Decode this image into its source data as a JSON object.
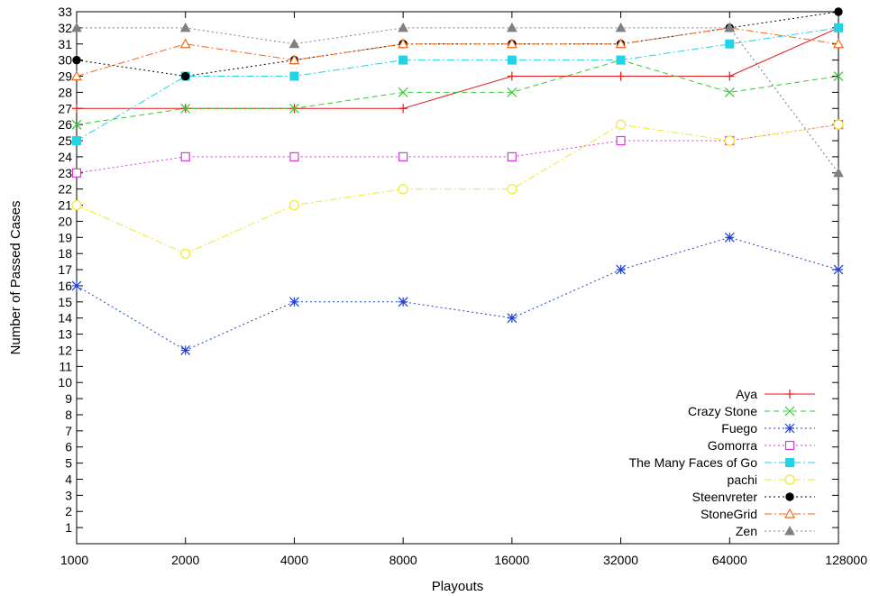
{
  "chart_data": {
    "type": "line",
    "xlabel": "Playouts",
    "ylabel": "Number of Passed Cases",
    "categories": [
      "1000",
      "2000",
      "4000",
      "8000",
      "16000",
      "32000",
      "64000",
      "128000"
    ],
    "y_ticks": [
      "1",
      "2",
      "3",
      "4",
      "5",
      "6",
      "7",
      "8",
      "9",
      "10",
      "11",
      "12",
      "13",
      "14",
      "15",
      "16",
      "17",
      "18",
      "19",
      "20",
      "21",
      "22",
      "23",
      "24",
      "25",
      "26",
      "27",
      "28",
      "29",
      "30",
      "31",
      "32",
      "33"
    ],
    "ylim": [
      0,
      33
    ],
    "x_scale": "log2 (evenly spaced)",
    "grid": false,
    "legend_position": "bottom-right",
    "series": [
      {
        "name": "Aya",
        "values": [
          27,
          27,
          27,
          27,
          29,
          29,
          29,
          32
        ],
        "color": "#e31a1c",
        "marker": "plus",
        "dash": "solid"
      },
      {
        "name": "Crazy Stone",
        "values": [
          26,
          27,
          27,
          28,
          28,
          30,
          28,
          29
        ],
        "color": "#33cc33",
        "marker": "cross",
        "dash": "dashed"
      },
      {
        "name": "Fuego",
        "values": [
          16,
          12,
          15,
          15,
          14,
          17,
          19,
          17
        ],
        "color": "#1f3fd0",
        "marker": "star",
        "dash": "dotted"
      },
      {
        "name": "Gomorra",
        "values": [
          23,
          24,
          24,
          24,
          24,
          25,
          25,
          26
        ],
        "color": "#d63ad6",
        "marker": "open-square",
        "dash": "dotted"
      },
      {
        "name": "The Many Faces of Go",
        "values": [
          25,
          29,
          29,
          30,
          30,
          30,
          31,
          32
        ],
        "color": "#22d3e6",
        "marker": "filled-square",
        "dash": "dash-dot"
      },
      {
        "name": "pachi",
        "values": [
          21,
          18,
          21,
          22,
          22,
          26,
          25,
          26
        ],
        "color": "#f2e82a",
        "marker": "open-circle",
        "dash": "dash-dot"
      },
      {
        "name": "Steenvreter",
        "values": [
          30,
          29,
          30,
          31,
          31,
          31,
          32,
          33
        ],
        "color": "#000000",
        "marker": "filled-circle",
        "dash": "dotted"
      },
      {
        "name": "StoneGrid",
        "values": [
          29,
          31,
          30,
          31,
          31,
          31,
          32,
          31
        ],
        "color": "#ef6a1b",
        "marker": "open-triangle",
        "dash": "dash-dot"
      },
      {
        "name": "Zen",
        "values": [
          32,
          32,
          31,
          32,
          32,
          32,
          32,
          23
        ],
        "color": "#808080",
        "marker": "filled-triangle",
        "dash": "dotted"
      }
    ]
  }
}
